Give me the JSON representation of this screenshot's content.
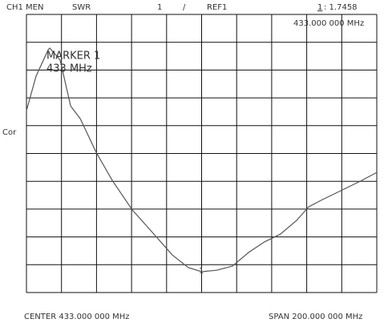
{
  "chart_data": {
    "type": "line",
    "annotations": [
      "CH1 MEN",
      "SWR",
      "1",
      "/",
      "REF1",
      "1",
      ": 1.7458",
      "433.000 000 MHz",
      "MARKER  1",
      "433 MHz",
      "Cor",
      "CENTER 433.000 000 MHz",
      "SPAN 200.000 000 MHz",
      "1"
    ],
    "x": [
      333,
      338.5,
      345.4,
      346.3,
      352.2,
      358.2,
      363.7,
      372.8,
      382,
      393.4,
      404.9,
      416.3,
      425.4,
      433,
      441.5,
      450.6,
      459.8,
      468.9,
      478,
      487.2,
      494.1,
      501,
      513.3,
      523.8,
      533
    ],
    "values": [
      7.54,
      8.78,
      9.73,
      9.79,
      9.36,
      7.71,
      7.25,
      6.04,
      5.03,
      3.97,
      3.16,
      2.35,
      1.9,
      1.75,
      1.8,
      1.95,
      2.44,
      2.82,
      3.1,
      3.59,
      4.08,
      4.31,
      4.69,
      5.01,
      5.32
    ],
    "color": "#555555",
    "xlim": [
      333,
      533
    ],
    "ylim": [
      1,
      11
    ]
  }
}
